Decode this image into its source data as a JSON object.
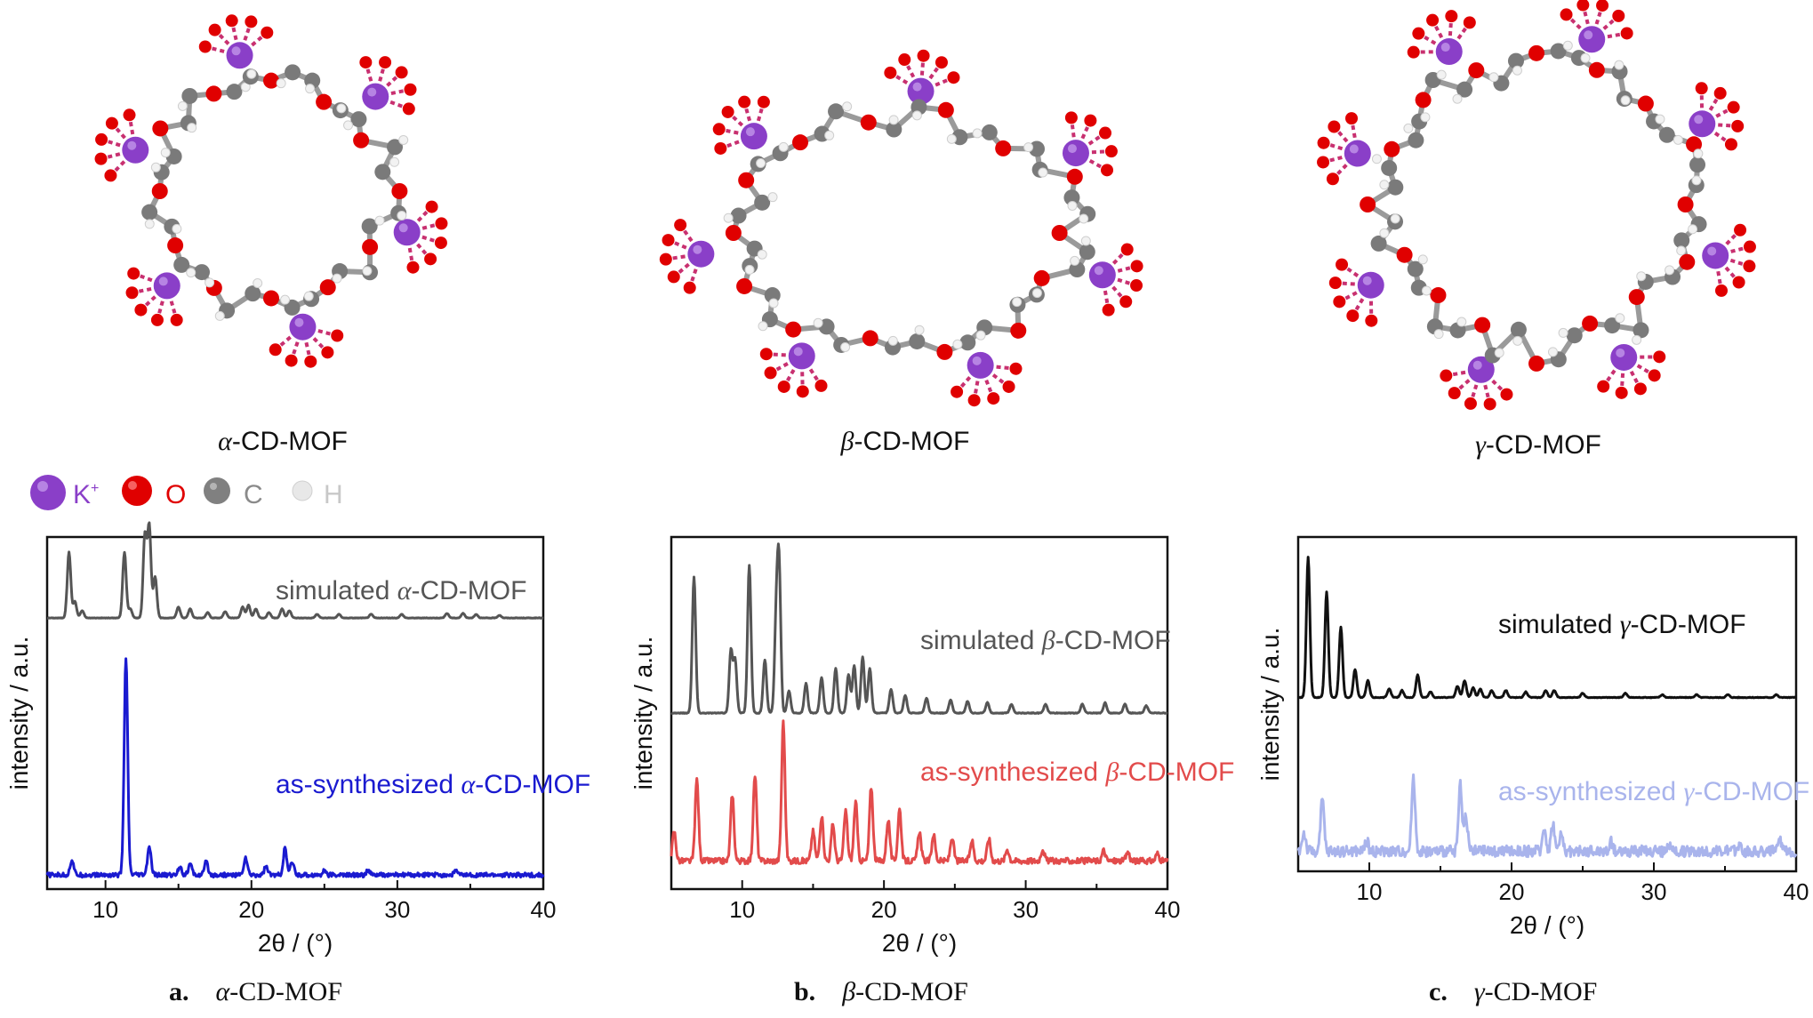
{
  "legend_atoms": [
    {
      "symbol": "K",
      "sup": "+",
      "color": "#8a3fc8",
      "text_color": "#8a3fc8"
    },
    {
      "symbol": "O",
      "sup": "",
      "color": "#e00000",
      "text_color": "#e00000"
    },
    {
      "symbol": "C",
      "sup": "",
      "color": "#808080",
      "text_color": "#8a8a8a"
    },
    {
      "symbol": "H",
      "sup": "",
      "color": "#e8e8e8",
      "text_color": "#c8c8c8"
    }
  ],
  "structures": [
    {
      "greek": "α",
      "label": "-CD-MOF",
      "sites": 6
    },
    {
      "greek": "β",
      "label": "-CD-MOF",
      "sites": 7
    },
    {
      "greek": "γ",
      "label": "-CD-MOF",
      "sites": 8
    }
  ],
  "panel_captions": [
    {
      "letter": "a.",
      "greek": "α",
      "text": "-CD-MOF"
    },
    {
      "letter": "b.",
      "greek": "β",
      "text": "-CD-MOF"
    },
    {
      "letter": "c.",
      "greek": "γ",
      "text": "-CD-MOF"
    }
  ],
  "chart_data": [
    {
      "type": "line",
      "xlabel": "2θ / (°)",
      "ylabel": "intensity / a.u.",
      "xlim": [
        6,
        40
      ],
      "xticks": [
        10,
        20,
        30,
        40
      ],
      "series": [
        {
          "name": "simulated α-CD-MOF",
          "greek": "α",
          "prefix": "simulated ",
          "suffix": "-CD-MOF",
          "color": "#555555",
          "peaks": [
            [
              7.5,
              0.72
            ],
            [
              7.9,
              0.18
            ],
            [
              8.4,
              0.08
            ],
            [
              11.3,
              0.72
            ],
            [
              11.7,
              0.1
            ],
            [
              12.7,
              0.9
            ],
            [
              13.0,
              1.0
            ],
            [
              13.4,
              0.45
            ],
            [
              15.0,
              0.12
            ],
            [
              15.8,
              0.1
            ],
            [
              17.0,
              0.06
            ],
            [
              18.2,
              0.07
            ],
            [
              19.4,
              0.12
            ],
            [
              19.8,
              0.14
            ],
            [
              20.3,
              0.1
            ],
            [
              21.2,
              0.06
            ],
            [
              22.1,
              0.1
            ],
            [
              22.6,
              0.08
            ],
            [
              24.5,
              0.04
            ],
            [
              26.0,
              0.04
            ],
            [
              28.2,
              0.04
            ],
            [
              30.3,
              0.04
            ],
            [
              33.4,
              0.05
            ],
            [
              34.5,
              0.05
            ],
            [
              35.4,
              0.04
            ],
            [
              37.0,
              0.03
            ]
          ]
        },
        {
          "name": "as-synthesized α-CD-MOF",
          "greek": "α",
          "prefix": "as-synthesized ",
          "suffix": "-CD-MOF",
          "color": "#1a1ad0",
          "peaks": [
            [
              7.7,
              0.07
            ],
            [
              11.4,
              1.0
            ],
            [
              13.0,
              0.13
            ],
            [
              15.1,
              0.04
            ],
            [
              15.8,
              0.05
            ],
            [
              16.9,
              0.06
            ],
            [
              19.6,
              0.08
            ],
            [
              21.0,
              0.04
            ],
            [
              22.3,
              0.12
            ],
            [
              22.8,
              0.06
            ],
            [
              25.0,
              0.02
            ],
            [
              28.0,
              0.02
            ],
            [
              34.0,
              0.02
            ]
          ]
        }
      ]
    },
    {
      "type": "line",
      "xlabel": "2θ / (°)",
      "ylabel": "intensity / a.u.",
      "xlim": [
        5,
        40
      ],
      "xticks": [
        10,
        20,
        30,
        40
      ],
      "series": [
        {
          "name": "simulated β-CD-MOF",
          "greek": "β",
          "prefix": "simulated ",
          "suffix": "-CD-MOF",
          "color": "#555555",
          "peaks": [
            [
              6.6,
              0.92
            ],
            [
              9.2,
              0.42
            ],
            [
              9.5,
              0.36
            ],
            [
              10.5,
              1.0
            ],
            [
              11.6,
              0.36
            ],
            [
              12.4,
              0.6
            ],
            [
              12.6,
              0.95
            ],
            [
              13.3,
              0.15
            ],
            [
              14.5,
              0.2
            ],
            [
              15.6,
              0.24
            ],
            [
              16.6,
              0.3
            ],
            [
              17.5,
              0.26
            ],
            [
              17.9,
              0.32
            ],
            [
              18.5,
              0.38
            ],
            [
              19.0,
              0.3
            ],
            [
              20.5,
              0.16
            ],
            [
              21.5,
              0.12
            ],
            [
              23.0,
              0.1
            ],
            [
              24.7,
              0.09
            ],
            [
              25.9,
              0.08
            ],
            [
              27.3,
              0.07
            ],
            [
              29.0,
              0.06
            ],
            [
              31.4,
              0.06
            ],
            [
              34.0,
              0.06
            ],
            [
              35.6,
              0.07
            ],
            [
              37.0,
              0.06
            ],
            [
              38.5,
              0.05
            ]
          ]
        },
        {
          "name": "as-synthesized β-CD-MOF",
          "greek": "β",
          "prefix": "as-synthesized ",
          "suffix": "-CD-MOF",
          "color": "#e24b4b",
          "peaks": [
            [
              5.2,
              0.2
            ],
            [
              6.8,
              0.55
            ],
            [
              9.3,
              0.45
            ],
            [
              10.9,
              0.58
            ],
            [
              12.9,
              0.95
            ],
            [
              15.0,
              0.2
            ],
            [
              15.6,
              0.3
            ],
            [
              16.4,
              0.25
            ],
            [
              17.3,
              0.34
            ],
            [
              18.0,
              0.4
            ],
            [
              19.1,
              0.5
            ],
            [
              20.3,
              0.28
            ],
            [
              21.1,
              0.35
            ],
            [
              22.5,
              0.2
            ],
            [
              23.5,
              0.18
            ],
            [
              24.8,
              0.16
            ],
            [
              26.2,
              0.14
            ],
            [
              27.4,
              0.15
            ],
            [
              28.7,
              0.08
            ],
            [
              31.2,
              0.08
            ],
            [
              35.5,
              0.07
            ],
            [
              37.2,
              0.06
            ],
            [
              39.3,
              0.05
            ]
          ]
        }
      ]
    },
    {
      "type": "line",
      "xlabel": "2θ / (°)",
      "ylabel": "intensity / a.u.",
      "xlim": [
        5,
        40
      ],
      "xticks": [
        10,
        20,
        30,
        40
      ],
      "series": [
        {
          "name": "simulated γ-CD-MOF",
          "greek": "γ",
          "prefix": "simulated ",
          "suffix": "-CD-MOF",
          "color": "#111111",
          "peaks": [
            [
              5.7,
              1.0
            ],
            [
              7.0,
              0.75
            ],
            [
              8.0,
              0.5
            ],
            [
              9.0,
              0.2
            ],
            [
              9.9,
              0.12
            ],
            [
              11.4,
              0.06
            ],
            [
              12.3,
              0.05
            ],
            [
              13.4,
              0.16
            ],
            [
              14.3,
              0.04
            ],
            [
              16.2,
              0.08
            ],
            [
              16.7,
              0.12
            ],
            [
              17.3,
              0.07
            ],
            [
              17.8,
              0.06
            ],
            [
              18.6,
              0.05
            ],
            [
              19.6,
              0.05
            ],
            [
              21.0,
              0.04
            ],
            [
              22.4,
              0.05
            ],
            [
              23.0,
              0.05
            ],
            [
              25.0,
              0.03
            ],
            [
              28.0,
              0.03
            ],
            [
              30.6,
              0.02
            ],
            [
              33.0,
              0.02
            ],
            [
              35.2,
              0.02
            ],
            [
              38.6,
              0.02
            ]
          ]
        },
        {
          "name": "as-synthesized γ-CD-MOF",
          "greek": "γ",
          "prefix": "as-synthesized ",
          "suffix": "-CD-MOF",
          "color": "#a9b4ec",
          "peaks": [
            [
              5.4,
              0.2
            ],
            [
              6.7,
              0.55
            ],
            [
              9.8,
              0.12
            ],
            [
              13.1,
              0.8
            ],
            [
              16.4,
              0.72
            ],
            [
              16.8,
              0.38
            ],
            [
              22.3,
              0.25
            ],
            [
              22.9,
              0.3
            ],
            [
              23.5,
              0.18
            ],
            [
              27.0,
              0.1
            ],
            [
              31.0,
              0.08
            ],
            [
              36.0,
              0.08
            ],
            [
              38.9,
              0.12
            ]
          ]
        }
      ]
    }
  ]
}
